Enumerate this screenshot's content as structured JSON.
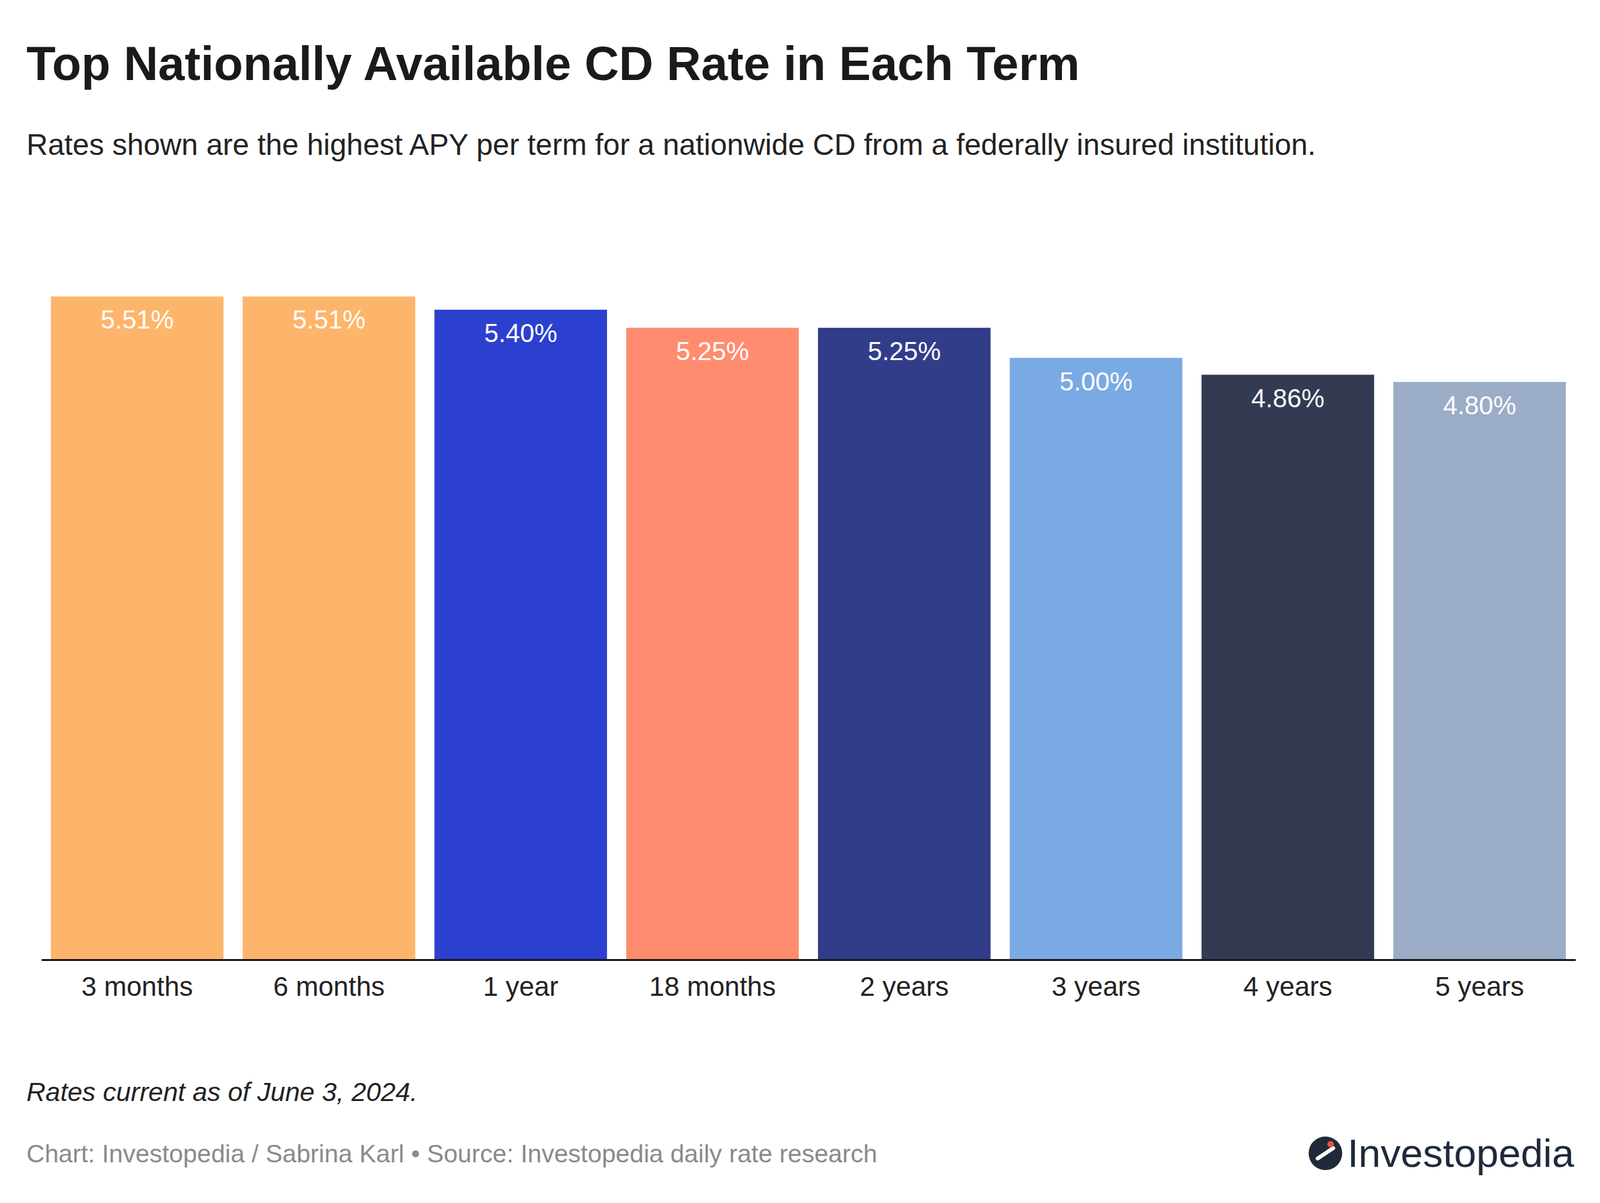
{
  "chart_data": {
    "type": "bar",
    "title": "Top Nationally Available CD Rate in Each Term",
    "subtitle": "Rates shown are the highest APY per term for a nationwide CD from a federally insured institution.",
    "categories": [
      "3 months",
      "6 months",
      "1 year",
      "18 months",
      "2 years",
      "3 years",
      "4 years",
      "5 years"
    ],
    "values": [
      5.51,
      5.51,
      5.4,
      5.25,
      5.25,
      5.0,
      4.86,
      4.8
    ],
    "value_labels": [
      "5.51%",
      "5.51%",
      "5.40%",
      "5.25%",
      "5.25%",
      "5.00%",
      "4.86%",
      "4.80%"
    ],
    "colors": [
      "#fdb56b",
      "#fdb56b",
      "#2c40cf",
      "#ff8c6e",
      "#323d8a",
      "#7aaae3",
      "#333a52",
      "#9bacc6"
    ],
    "ylim": [
      0,
      6
    ],
    "data_labels": true,
    "tick_labels": "x",
    "grid": false,
    "annotations": [
      "Rates current as of June 3, 2024.",
      "Chart: Investopedia / Sabrina Karl • Source: Investopedia daily rate research",
      "Investopedia"
    ]
  }
}
